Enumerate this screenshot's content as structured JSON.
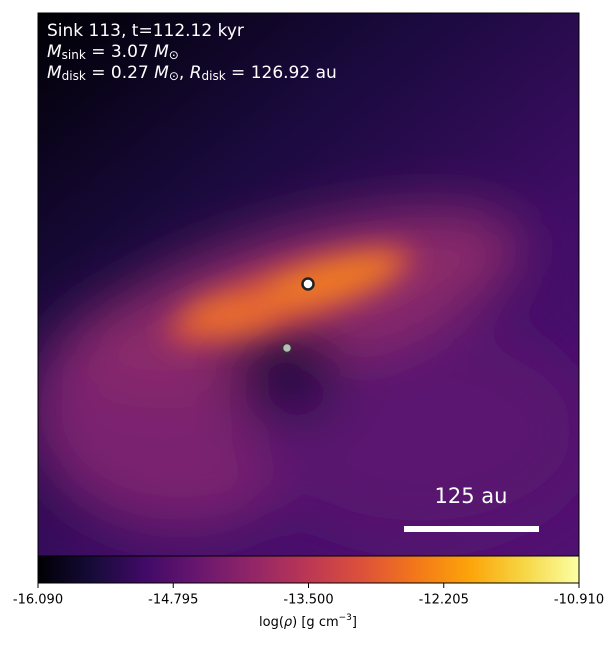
{
  "chart_data": {
    "type": "heatmap",
    "annotations": [
      [
        "Sink 113, t=112.12 kyr"
      ],
      [
        "M",
        "sink",
        " = 3.07 ",
        "M",
        "⊙"
      ],
      [
        "M",
        "disk",
        " = 0.27 ",
        "M",
        "⊙",
        ", ",
        "R",
        "disk",
        " = 126.92 au"
      ]
    ],
    "scalebar_label": "125 au",
    "colormap": "inferno",
    "colorbar": {
      "lim": [
        -16.09,
        -10.91
      ],
      "ticks": [
        {
          "value": -16.09,
          "label": "-16.090"
        },
        -14.795,
        {
          "value": -13.5,
          "label": "-13.500"
        },
        -12.205,
        {
          "value": -10.91,
          "label": "-10.910"
        }
      ],
      "label": [
        "log(",
        "ρ",
        ") [g cm",
        "−3",
        "]"
      ]
    }
  }
}
